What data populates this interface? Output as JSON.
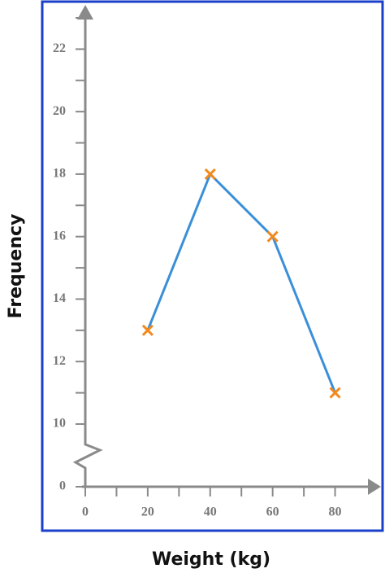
{
  "chart_data": {
    "type": "line",
    "x_label": "Weight (kg)",
    "y_label": "Frequency",
    "x": [
      20,
      40,
      60,
      80
    ],
    "values": [
      13,
      18,
      16,
      11
    ],
    "color": "#3a8fd9",
    "marker": "x",
    "marker_color": "#f28a1e",
    "xlim": [
      0,
      90
    ],
    "xticks": [
      0,
      20,
      40,
      60,
      80
    ],
    "minor_xticks": [
      10,
      30,
      50,
      70
    ],
    "ylim": [
      0,
      23
    ],
    "yticks": [
      0,
      10,
      12,
      14,
      16,
      18,
      20,
      22
    ],
    "minor_yticks": [
      11,
      13,
      15,
      17,
      19,
      21,
      23
    ],
    "y_axis_break": true,
    "frame_color": "#1a3fc8"
  }
}
